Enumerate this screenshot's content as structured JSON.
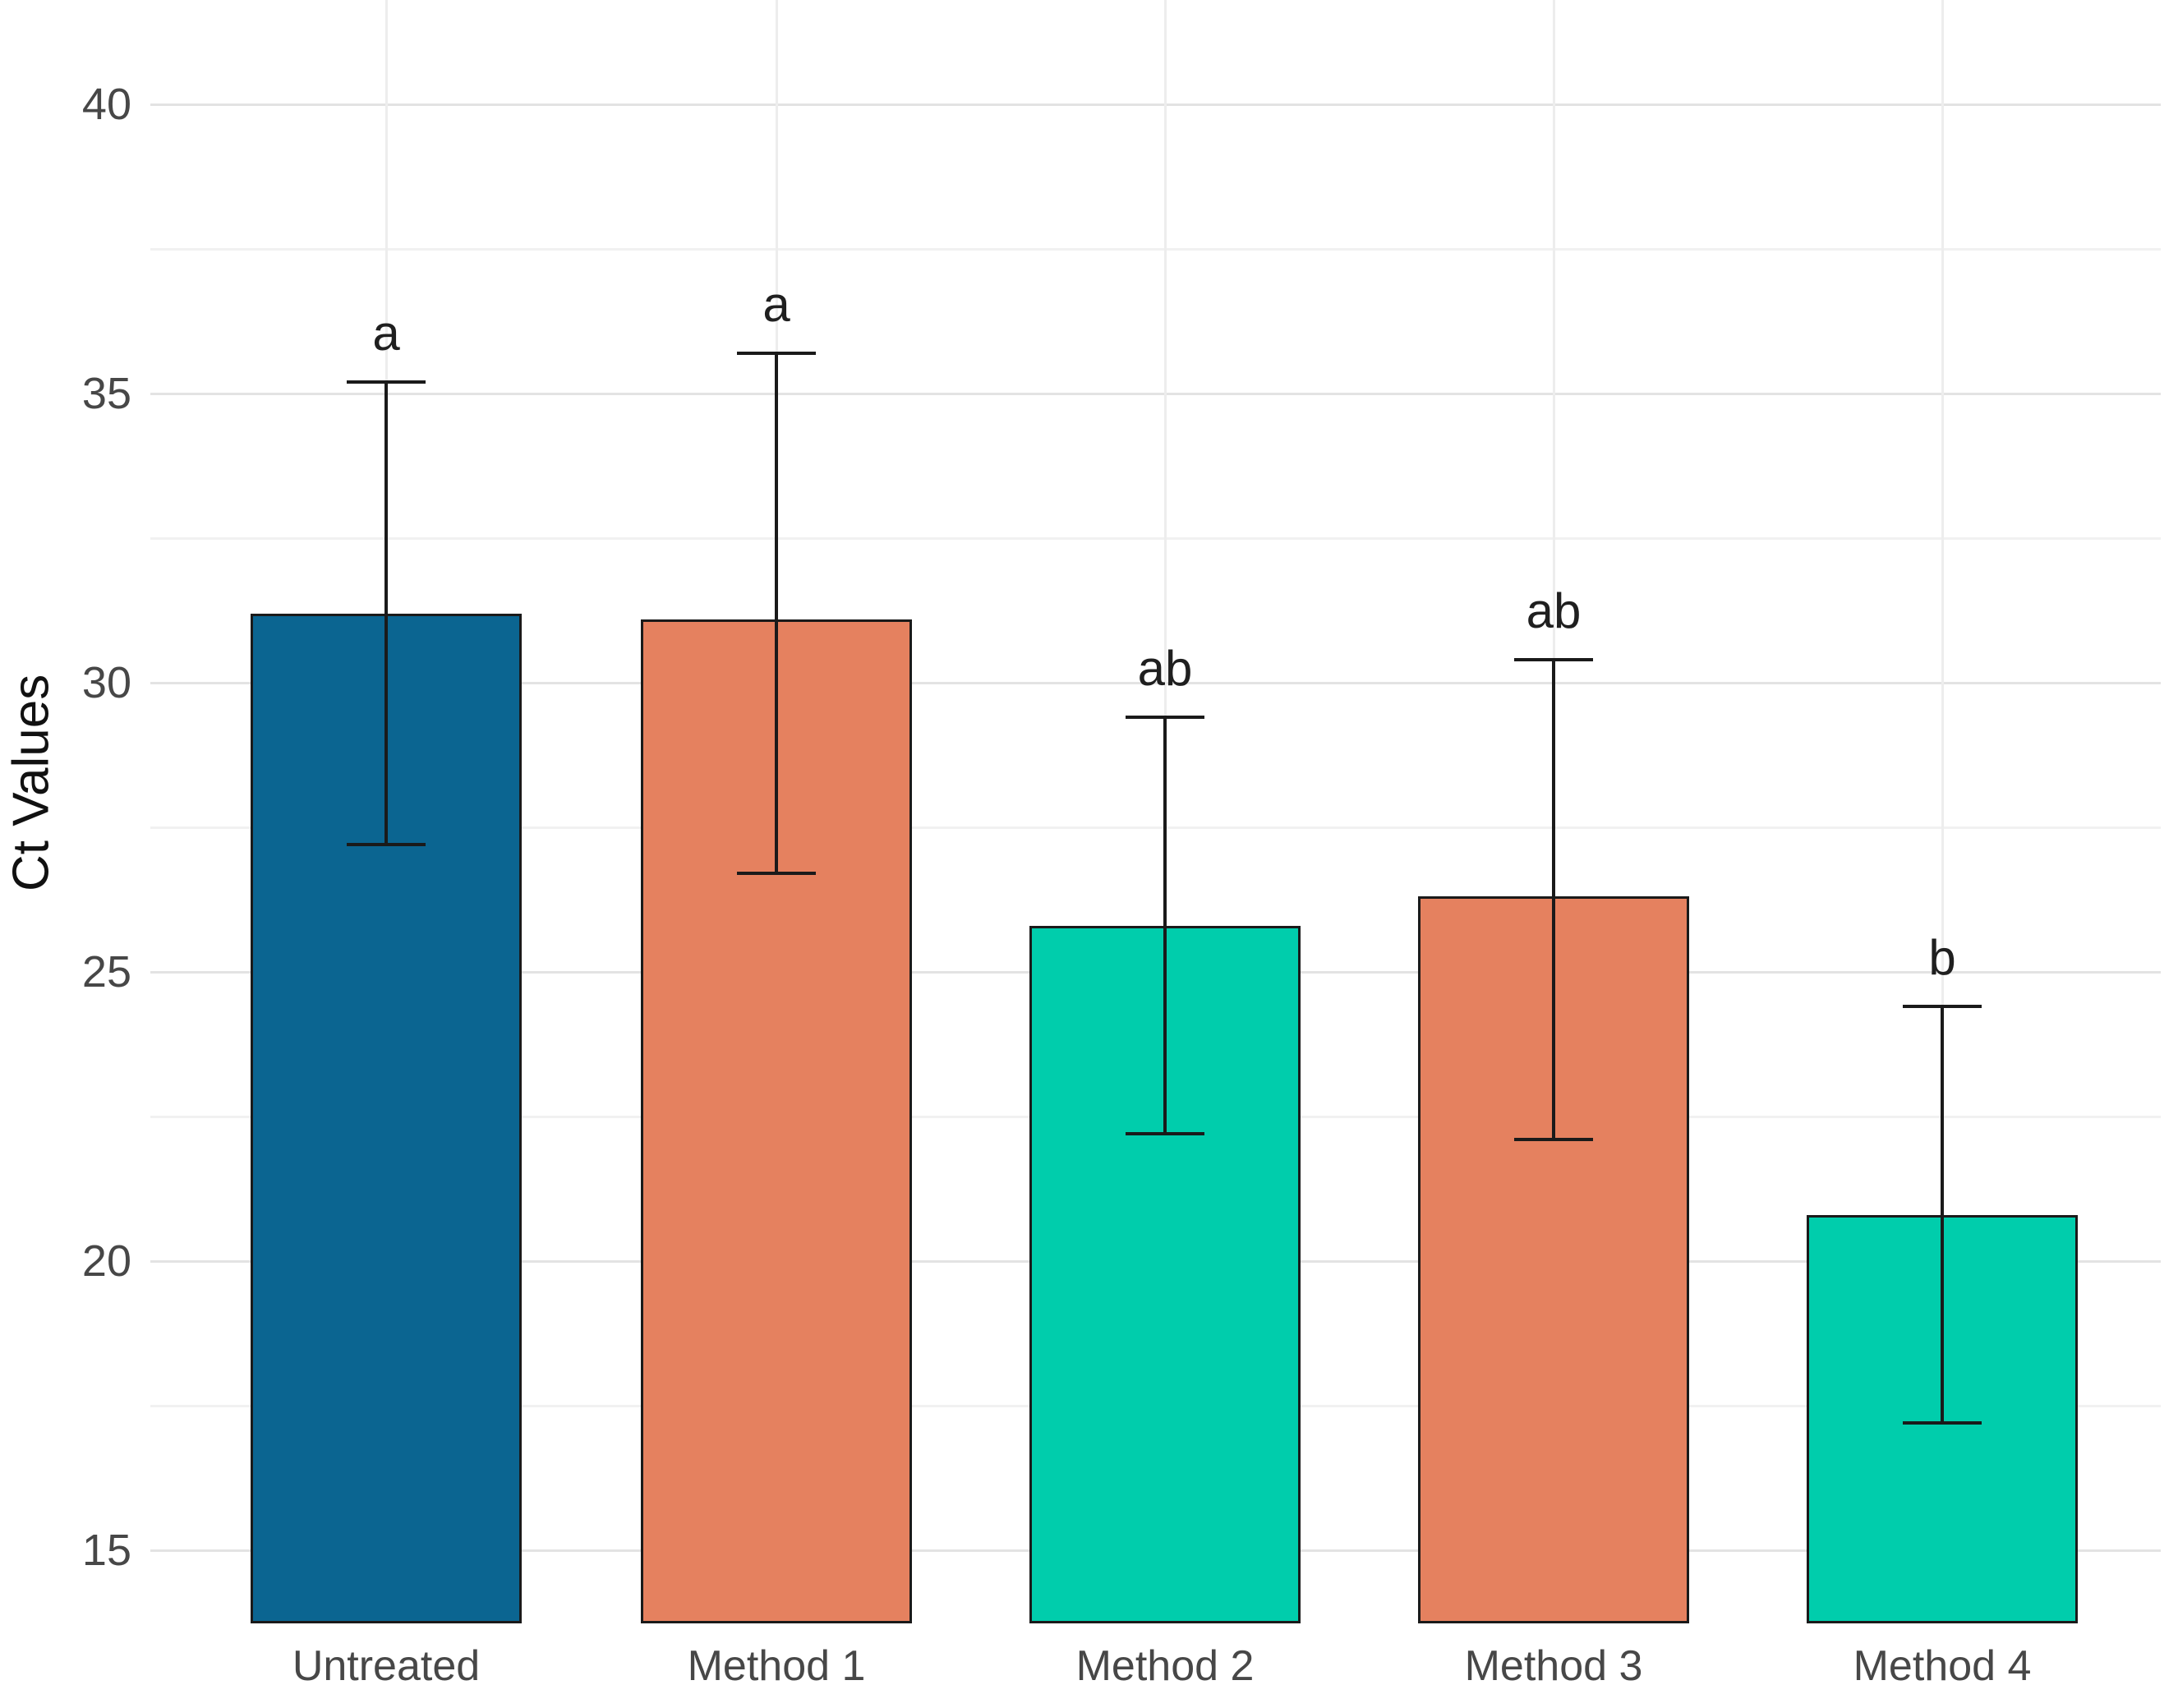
{
  "chart_data": {
    "type": "bar",
    "title": "",
    "xlabel": "",
    "ylabel": "Ct Values",
    "categories": [
      "Untreated",
      "Method 1",
      "Method 2",
      "Method 3",
      "Method 4"
    ],
    "values": [
      31.2,
      31.1,
      25.8,
      26.3,
      20.8
    ],
    "error_upper": [
      35.2,
      35.7,
      29.4,
      30.4,
      24.4
    ],
    "error_lower": [
      27.2,
      26.7,
      22.2,
      22.1,
      17.2
    ],
    "significance_letters": [
      "a",
      "a",
      "ab",
      "ab",
      "b"
    ],
    "bar_colors": [
      "#0B6591",
      "#E5815F",
      "#00CDAC",
      "#E5815F",
      "#00CDAC"
    ],
    "bar_border_color": "#1a1a1a",
    "y_ticks": [
      15,
      20,
      25,
      30,
      35,
      40
    ],
    "y_minor_ticks": [
      17.5,
      22.5,
      27.5,
      32.5,
      37.5
    ],
    "ylim": [
      13.7,
      41.8
    ],
    "grid": true,
    "legend": "none"
  }
}
